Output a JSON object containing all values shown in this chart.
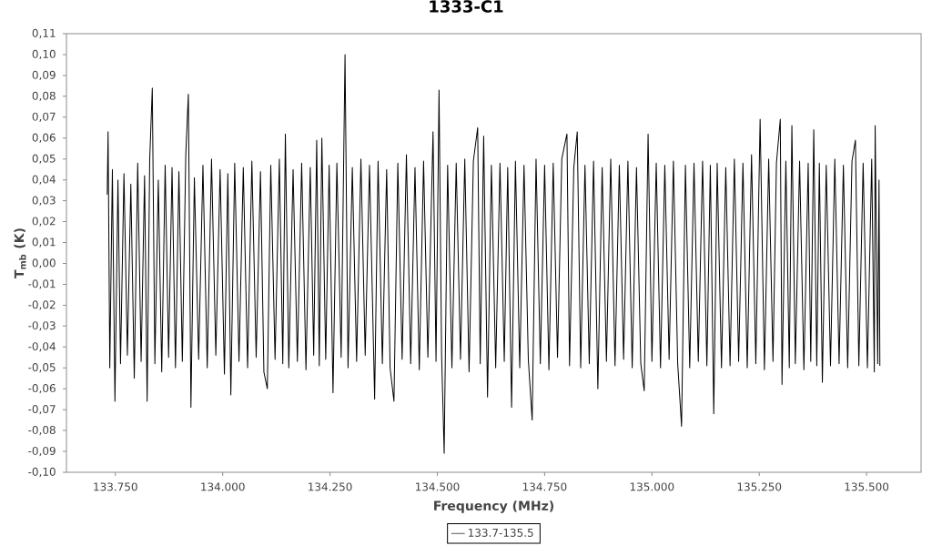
{
  "chart_data": {
    "type": "line",
    "title": "1333-C1",
    "xlabel": "Frequency (MHz)",
    "ylabel": "T$_{mb}$ (K)",
    "xlim": [
      133636,
      135627
    ],
    "ylim": [
      -0.1,
      0.11
    ],
    "xticks": [
      {
        "value": 133750,
        "label": "133.750"
      },
      {
        "value": 134000,
        "label": "134.000"
      },
      {
        "value": 134250,
        "label": "134.250"
      },
      {
        "value": 134500,
        "label": "134.500"
      },
      {
        "value": 134750,
        "label": "134.750"
      },
      {
        "value": 135000,
        "label": "135.000"
      },
      {
        "value": 135250,
        "label": "135.250"
      },
      {
        "value": 135500,
        "label": "135.500"
      }
    ],
    "yticks": [
      {
        "value": -0.1,
        "label": "-0,10"
      },
      {
        "value": -0.09,
        "label": "-0,09"
      },
      {
        "value": -0.08,
        "label": "-0,08"
      },
      {
        "value": -0.07,
        "label": "-0,07"
      },
      {
        "value": -0.06,
        "label": "-0,06"
      },
      {
        "value": -0.05,
        "label": "-0,05"
      },
      {
        "value": -0.04,
        "label": "-0,04"
      },
      {
        "value": -0.03,
        "label": "-0,03"
      },
      {
        "value": -0.02,
        "label": "-0,02"
      },
      {
        "value": -0.01,
        "label": "-0,01"
      },
      {
        "value": 0.0,
        "label": "0,00"
      },
      {
        "value": 0.01,
        "label": "0,01"
      },
      {
        "value": 0.02,
        "label": "0,02"
      },
      {
        "value": 0.03,
        "label": "0,03"
      },
      {
        "value": 0.04,
        "label": "0,04"
      },
      {
        "value": 0.05,
        "label": "0,05"
      },
      {
        "value": 0.06,
        "label": "0,06"
      },
      {
        "value": 0.07,
        "label": "0,07"
      },
      {
        "value": 0.08,
        "label": "0,08"
      },
      {
        "value": 0.09,
        "label": "0,09"
      },
      {
        "value": 0.1,
        "label": "0,10"
      },
      {
        "value": 0.11,
        "label": "0,11"
      }
    ],
    "legend": "bottom",
    "marker": "none",
    "line_style": "solid",
    "x": [
      133731,
      133733,
      133737,
      133743,
      133749,
      133756,
      133762,
      133770,
      133778,
      133786,
      133794,
      133802,
      133810,
      133818,
      133824,
      133830,
      133836,
      133842,
      133850,
      133858,
      133866,
      133874,
      133882,
      133890,
      133898,
      133906,
      133914,
      133920,
      133926,
      133934,
      133944,
      133954,
      133964,
      133974,
      133984,
      133994,
      134004,
      134012,
      134019,
      134028,
      134038,
      134048,
      134058,
      134068,
      134078,
      134088,
      134096,
      134104,
      134112,
      134122,
      134132,
      134140,
      134146,
      134154,
      134164,
      134174,
      134184,
      134194,
      134204,
      134212,
      134219,
      134225,
      134231,
      134240,
      134248,
      134257,
      134266,
      134276,
      134285,
      134292,
      134302,
      134312,
      134322,
      134332,
      134342,
      134354,
      134362,
      134372,
      134382,
      134390,
      134399,
      134408,
      134418,
      134428,
      134438,
      134448,
      134458,
      134468,
      134478,
      134490,
      134497,
      134504,
      134510,
      134516,
      134524,
      134534,
      134544,
      134554,
      134564,
      134574,
      134584,
      134594,
      134600,
      134608,
      134617,
      134626,
      134636,
      134646,
      134656,
      134664,
      134673,
      134682,
      134692,
      134702,
      134712,
      134721,
      134730,
      134740,
      134750,
      134760,
      134770,
      134780,
      134790,
      134802,
      134808,
      134818,
      134826,
      134834,
      134844,
      134854,
      134864,
      134874,
      134884,
      134894,
      134904,
      134914,
      134924,
      134934,
      134944,
      134954,
      134964,
      134974,
      134982,
      134991,
      135000,
      135010,
      135020,
      135030,
      135040,
      135050,
      135060,
      135069,
      135078,
      135088,
      135098,
      135108,
      135118,
      135128,
      135136,
      135144,
      135152,
      135162,
      135172,
      135182,
      135192,
      135202,
      135212,
      135222,
      135232,
      135242,
      135252,
      135262,
      135272,
      135282,
      135290,
      135299,
      135303,
      135312,
      135320,
      135326,
      135334,
      135344,
      135354,
      135364,
      135370,
      135377,
      135384,
      135390,
      135397,
      135406,
      135416,
      135426,
      135436,
      135446,
      135456,
      135466,
      135474,
      135482,
      135492,
      135502,
      135512,
      135518,
      135520,
      135526,
      135529,
      135531
    ],
    "series": [
      {
        "name": "133.7-135.5",
        "color": "#000000",
        "values": [
          0.033,
          0.063,
          -0.05,
          0.045,
          -0.066,
          0.04,
          -0.048,
          0.043,
          -0.044,
          0.038,
          -0.055,
          0.048,
          -0.047,
          0.042,
          -0.066,
          0.05,
          0.084,
          -0.048,
          0.04,
          -0.052,
          0.047,
          -0.045,
          0.046,
          -0.05,
          0.044,
          -0.047,
          0.052,
          0.081,
          -0.069,
          0.041,
          -0.046,
          0.047,
          -0.05,
          0.05,
          -0.044,
          0.045,
          -0.053,
          0.043,
          -0.063,
          0.048,
          -0.047,
          0.046,
          -0.05,
          0.049,
          -0.045,
          0.044,
          -0.052,
          -0.06,
          0.047,
          -0.046,
          0.05,
          -0.048,
          0.062,
          -0.05,
          0.045,
          -0.047,
          0.048,
          -0.051,
          0.046,
          -0.044,
          0.059,
          -0.049,
          0.06,
          -0.046,
          0.047,
          -0.062,
          0.048,
          -0.045,
          0.1,
          -0.05,
          0.046,
          -0.047,
          0.05,
          -0.044,
          0.047,
          -0.065,
          0.049,
          -0.048,
          0.045,
          -0.05,
          -0.066,
          0.048,
          -0.046,
          0.052,
          -0.048,
          0.046,
          -0.051,
          0.049,
          -0.045,
          0.063,
          -0.047,
          0.083,
          -0.044,
          -0.091,
          0.047,
          -0.05,
          0.048,
          -0.046,
          0.05,
          -0.052,
          0.049,
          0.065,
          -0.048,
          0.061,
          -0.064,
          0.047,
          -0.05,
          0.048,
          -0.047,
          0.046,
          -0.069,
          0.049,
          -0.05,
          0.047,
          -0.046,
          -0.075,
          0.05,
          -0.048,
          0.047,
          -0.051,
          0.048,
          -0.045,
          0.05,
          0.062,
          -0.049,
          0.046,
          0.063,
          -0.05,
          0.047,
          -0.048,
          0.049,
          -0.06,
          0.046,
          -0.047,
          0.05,
          -0.049,
          0.047,
          -0.046,
          0.049,
          -0.05,
          0.046,
          -0.048,
          -0.061,
          0.062,
          -0.047,
          0.048,
          -0.05,
          0.047,
          -0.046,
          0.049,
          -0.048,
          -0.078,
          0.047,
          -0.05,
          0.048,
          -0.047,
          0.049,
          -0.049,
          0.047,
          -0.072,
          0.048,
          -0.05,
          0.046,
          -0.049,
          0.05,
          -0.047,
          0.048,
          -0.05,
          0.052,
          -0.048,
          0.069,
          -0.051,
          0.05,
          -0.047,
          0.048,
          0.069,
          -0.058,
          0.049,
          -0.05,
          0.066,
          -0.048,
          0.049,
          -0.051,
          0.048,
          -0.047,
          0.064,
          -0.049,
          0.048,
          -0.057,
          0.047,
          -0.049,
          0.05,
          -0.048,
          0.047,
          -0.05,
          0.049,
          0.059,
          -0.049,
          0.048,
          -0.05,
          0.05,
          -0.052,
          0.066,
          -0.048,
          0.04,
          -0.049
        ]
      }
    ]
  }
}
